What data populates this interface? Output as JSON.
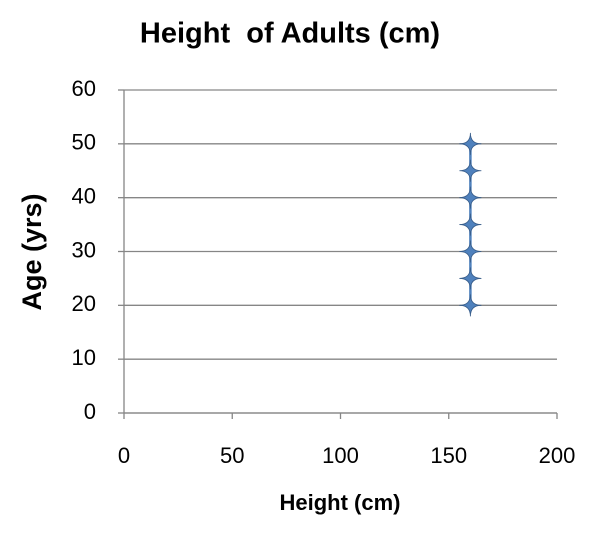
{
  "chart_data": {
    "type": "scatter",
    "title": "Height  of Adults (cm)",
    "x_label": "Height (cm)",
    "y_label": "Age (yrs)",
    "series": [
      {
        "color": "#4f81bd",
        "x": [
          160,
          160,
          160,
          160,
          160,
          160,
          160
        ],
        "values": [
          20,
          25,
          30,
          35,
          40,
          45,
          50
        ]
      }
    ],
    "xlim": [
      0,
      200
    ],
    "xticks": [
      0,
      50,
      100,
      150,
      200
    ],
    "ylim": [
      0,
      60
    ],
    "yticks": [
      0,
      10,
      20,
      30,
      40,
      50,
      60
    ],
    "grid": true
  }
}
